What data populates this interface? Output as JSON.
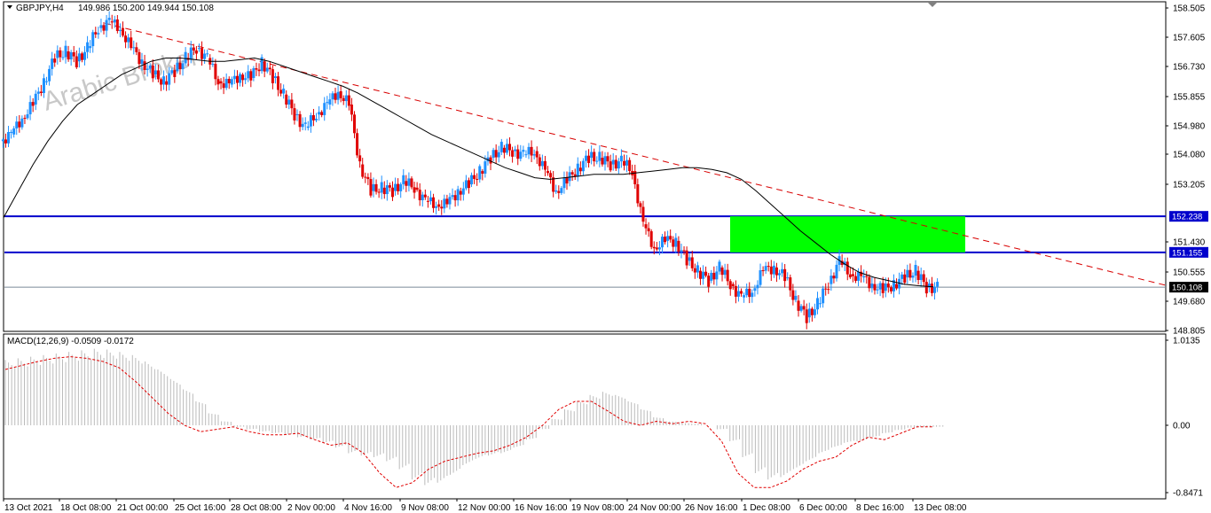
{
  "header": {
    "instrument": "GBPJPY,H4",
    "ohlc": "149.986 150.200 149.944 150.108"
  },
  "watermark": "Arabic Broker",
  "chart_data": [
    {
      "type": "candlestick",
      "title": "GBPJPY,H4",
      "ylim": [
        148.805,
        158.505
      ],
      "y_ticks": [
        "158.505",
        "157.605",
        "156.730",
        "155.855",
        "154.980",
        "154.080",
        "153.205",
        "151.430",
        "150.555",
        "149.680",
        "148.805"
      ],
      "x_ticks": [
        "13 Oct 2021",
        "18 Oct 08:00",
        "21 Oct 00:00",
        "25 Oct 16:00",
        "28 Oct 08:00",
        "2 Nov 00:00",
        "4 Nov 16:00",
        "9 Nov 08:00",
        "12 Nov 00:00",
        "16 Nov 16:00",
        "19 Nov 08:00",
        "24 Nov 00:00",
        "26 Nov 16:00",
        "1 Dec 08:00",
        "6 Dec 00:00",
        "8 Dec 16:00",
        "13 Dec 08:00"
      ],
      "closes": [
        154.7,
        155.2,
        155.6,
        156.3,
        157.0,
        157.2,
        156.9,
        157.3,
        157.9,
        158.1,
        157.9,
        157.3,
        156.9,
        156.5,
        156.3,
        156.6,
        157.0,
        157.3,
        157.0,
        156.3,
        156.2,
        156.5,
        156.4,
        156.9,
        156.4,
        155.9,
        155.3,
        154.9,
        155.3,
        155.6,
        156.0,
        155.6,
        153.8,
        153.0,
        153.1,
        153.0,
        153.3,
        153.1,
        152.7,
        152.6,
        152.6,
        153.0,
        153.2,
        153.6,
        154.0,
        154.3,
        154.2,
        154.1,
        154.2,
        153.6,
        153.0,
        153.3,
        153.7,
        154.0,
        154.0,
        153.8,
        153.9,
        153.6,
        152.0,
        151.3,
        151.5,
        151.5,
        150.9,
        150.6,
        150.3,
        150.7,
        150.2,
        149.8,
        150.0,
        150.6,
        150.7,
        150.4,
        149.7,
        149.2,
        149.6,
        150.2,
        150.9,
        150.5,
        150.4,
        150.2,
        150.0,
        150.2,
        150.4,
        150.6,
        150.1,
        150.108
      ],
      "series": [
        {
          "name": "",
          "kind": "moving-average",
          "values": [
            152.2,
            153.0,
            153.8,
            154.5,
            155.1,
            155.6,
            155.9,
            156.2,
            156.5,
            156.7,
            156.9,
            157.0,
            157.0,
            156.95,
            156.9,
            156.9,
            156.95,
            157.0,
            156.9,
            156.75,
            156.6,
            156.45,
            156.3,
            156.15,
            155.95,
            155.7,
            155.45,
            155.2,
            154.95,
            154.7,
            154.5,
            154.3,
            154.1,
            153.9,
            153.7,
            153.55,
            153.4,
            153.35,
            153.4,
            153.45,
            153.5,
            153.5,
            153.5,
            153.55,
            153.6,
            153.65,
            153.7,
            153.7,
            153.65,
            153.55,
            153.35,
            153.0,
            152.6,
            152.2,
            151.8,
            151.45,
            151.1,
            150.8,
            150.55,
            150.4,
            150.3,
            150.2,
            150.15,
            150.12
          ]
        },
        {
          "name": "",
          "kind": "trendline",
          "from": [
            "18 Oct 08:00",
            158.1
          ],
          "to": [
            "13 Dec 08:00",
            150.9
          ]
        }
      ],
      "hlines": [
        {
          "label": "152.238",
          "value": 152.238,
          "color": "#0000cc"
        },
        {
          "label": "151.155",
          "value": 151.155,
          "color": "#0000cc"
        },
        {
          "label": "150.108",
          "value": 150.108,
          "color": "#000000",
          "kind": "current-price"
        }
      ],
      "zone": {
        "from_price": 151.155,
        "to_price": 152.238,
        "color": "#00ff00"
      },
      "colors": {
        "up": "#1e90ff",
        "down": "#e00000",
        "ma": "#000000",
        "trend": "#d80000"
      }
    },
    {
      "type": "bar",
      "title": "MACD(12,26,9) -0.0509 -0.0172",
      "ylim": [
        -0.8471,
        1.0135
      ],
      "y_ticks": [
        "1.0135",
        "0.00",
        "-0.8471"
      ],
      "series": [
        {
          "name": "MACD",
          "kind": "histogram",
          "color": "#bbbbbb",
          "values": [
            0.82,
            0.84,
            0.86,
            0.88,
            0.9,
            0.92,
            0.94,
            0.96,
            0.95,
            0.92,
            0.88,
            0.8,
            0.7,
            0.58,
            0.45,
            0.3,
            0.15,
            0.05,
            -0.02,
            -0.05,
            -0.08,
            -0.1,
            -0.12,
            -0.15,
            -0.18,
            -0.22,
            -0.28,
            -0.35,
            -0.38,
            -0.4,
            -0.45,
            -0.55,
            -0.68,
            -0.75,
            -0.72,
            -0.62,
            -0.5,
            -0.42,
            -0.38,
            -0.35,
            -0.28,
            -0.18,
            -0.05,
            0.08,
            0.2,
            0.3,
            0.38,
            0.42,
            0.38,
            0.3,
            0.2,
            0.1,
            0.05,
            0.03,
            0.02,
            0.0,
            -0.05,
            -0.2,
            -0.4,
            -0.6,
            -0.68,
            -0.65,
            -0.55,
            -0.45,
            -0.35,
            -0.28,
            -0.22,
            -0.2,
            -0.15,
            -0.1,
            -0.06,
            -0.03,
            -0.02,
            -0.02
          ]
        },
        {
          "name": "Signal",
          "kind": "line",
          "color": "#e00000",
          "values": [
            0.7,
            0.75,
            0.8,
            0.84,
            0.86,
            0.84,
            0.8,
            0.72,
            0.55,
            0.35,
            0.15,
            0.0,
            -0.08,
            -0.05,
            -0.02,
            -0.08,
            -0.12,
            -0.12,
            -0.1,
            -0.18,
            -0.25,
            -0.22,
            -0.35,
            -0.6,
            -0.78,
            -0.72,
            -0.55,
            -0.45,
            -0.4,
            -0.35,
            -0.32,
            -0.25,
            -0.15,
            0.0,
            0.2,
            0.3,
            0.3,
            0.18,
            0.05,
            0.0,
            0.05,
            0.02,
            0.05,
            0.02,
            -0.2,
            -0.6,
            -0.78,
            -0.78,
            -0.7,
            -0.55,
            -0.45,
            -0.4,
            -0.25,
            -0.15,
            -0.18,
            -0.1,
            -0.02,
            -0.02
          ]
        }
      ]
    }
  ]
}
